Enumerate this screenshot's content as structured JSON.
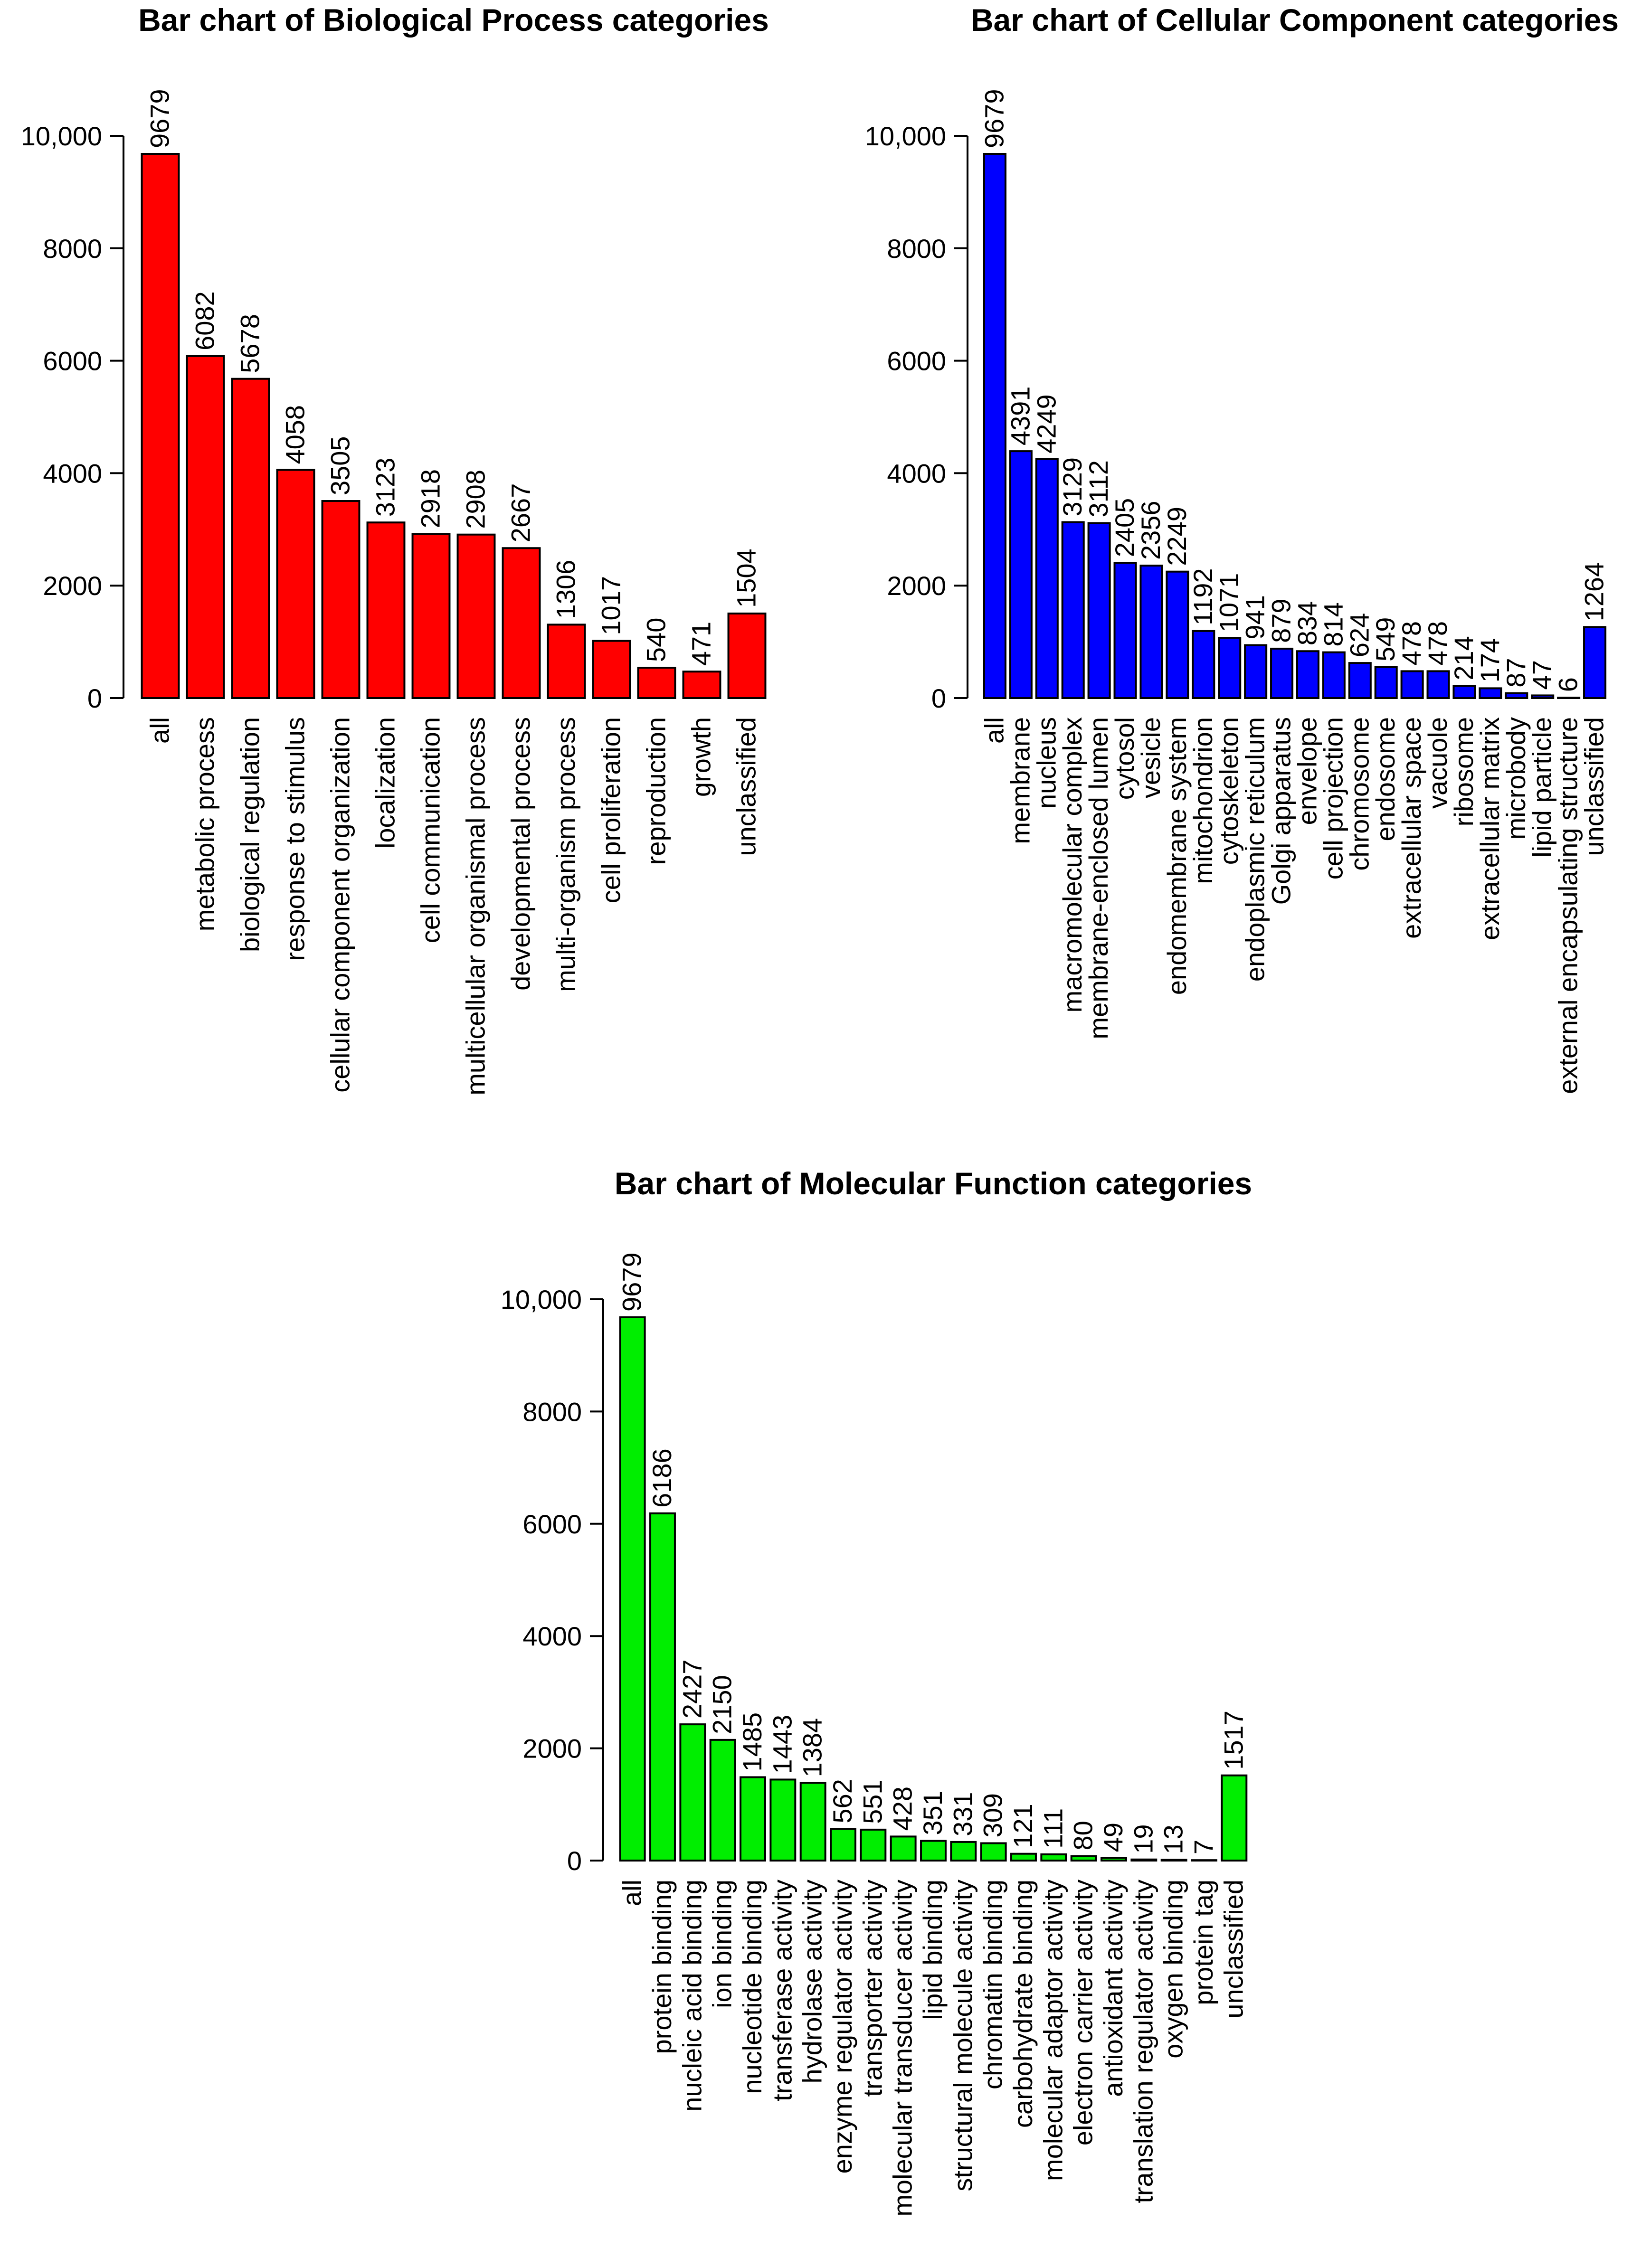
{
  "chart_data": [
    {
      "type": "bar",
      "title": "Bar chart of Biological Process categories",
      "xlabel": "",
      "ylabel": "",
      "ylim": [
        0,
        10000
      ],
      "yticks": [
        "0",
        "2000",
        "4000",
        "6000",
        "8000",
        "10,000"
      ],
      "bar_color": "#ff0000",
      "categories": [
        "all",
        "metabolic process",
        "biological regulation",
        "response to stimulus",
        "cellular component organization",
        "localization",
        "cell communication",
        "multicellular organismal process",
        "developmental process",
        "multi-organism process",
        "cell proliferation",
        "reproduction",
        "growth",
        "unclassified"
      ],
      "values": [
        9679,
        6082,
        5678,
        4058,
        3505,
        3123,
        2918,
        2908,
        2667,
        1306,
        1017,
        540,
        471,
        1504
      ]
    },
    {
      "type": "bar",
      "title": "Bar chart of Cellular Component categories",
      "xlabel": "",
      "ylabel": "",
      "ylim": [
        0,
        10000
      ],
      "yticks": [
        "0",
        "2000",
        "4000",
        "6000",
        "8000",
        "10,000"
      ],
      "bar_color": "#0000ff",
      "categories": [
        "all",
        "membrane",
        "nucleus",
        "macromolecular complex",
        "membrane-enclosed lumen",
        "cytosol",
        "vesicle",
        "endomembrane system",
        "mitochondrion",
        "cytoskeleton",
        "endoplasmic reticulum",
        "Golgi apparatus",
        "envelope",
        "cell projection",
        "chromosome",
        "endosome",
        "extracellular space",
        "vacuole",
        "ribosome",
        "extracellular matrix",
        "microbody",
        "lipid particle",
        "external encapsulating structure",
        "unclassified"
      ],
      "values": [
        9679,
        4391,
        4249,
        3129,
        3112,
        2405,
        2356,
        2249,
        1192,
        1071,
        941,
        879,
        834,
        814,
        624,
        549,
        478,
        478,
        214,
        174,
        87,
        47,
        6,
        1264
      ]
    },
    {
      "type": "bar",
      "title": "Bar chart of Molecular Function categories",
      "xlabel": "",
      "ylabel": "",
      "ylim": [
        0,
        10000
      ],
      "yticks": [
        "0",
        "2000",
        "4000",
        "6000",
        "8000",
        "10,000"
      ],
      "bar_color": "#00ee00",
      "categories": [
        "all",
        "protein binding",
        "nucleic acid binding",
        "ion binding",
        "nucleotide binding",
        "transferase activity",
        "hydrolase activity",
        "enzyme regulator activity",
        "transporter activity",
        "molecular transducer activity",
        "lipid binding",
        "structural molecule activity",
        "chromatin binding",
        "carbohydrate binding",
        "molecular adaptor activity",
        "electron carrier activity",
        "antioxidant activity",
        "translation regulator activity",
        "oxygen binding",
        "protein tag",
        "unclassified"
      ],
      "values": [
        9679,
        6186,
        2427,
        2150,
        1485,
        1443,
        1384,
        562,
        551,
        428,
        351,
        331,
        309,
        121,
        111,
        80,
        49,
        19,
        13,
        7,
        1517
      ]
    }
  ]
}
